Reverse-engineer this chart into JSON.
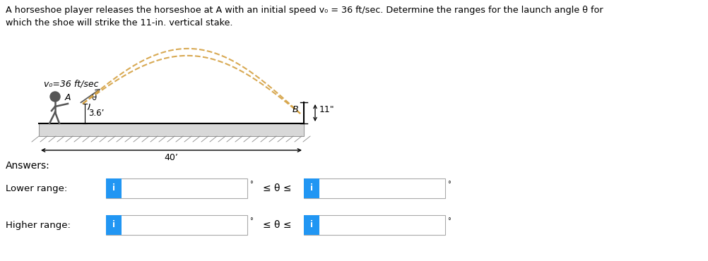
{
  "title_line1": "A horseshoe player releases the horseshoe at A with an initial speed v₀ = 36 ft/sec. Determine the ranges for the launch angle θ for",
  "title_line2": "which the shoe will strike the 11-in. vertical stake.",
  "v0_label": "v₀=36 ft/sec",
  "height_label": "3.6’",
  "distance_label": "40’",
  "stake_label": "11\"",
  "point_B": "B",
  "lower_range_label": "Lower range:",
  "higher_range_label": "Higher range:",
  "answers_label": "Answers:",
  "leq_theta_leq": "≤ θ ≤",
  "degree_symbol": "°",
  "box_fill": "white",
  "box_edge": "#aaaaaa",
  "blue_fill": "#2196F3",
  "bg_color": "white",
  "text_color": "black",
  "ground_color": "#d8d8d8",
  "arc_color": "#d4a040",
  "figure_width": 10.02,
  "figure_height": 3.7,
  "dpi": 100
}
